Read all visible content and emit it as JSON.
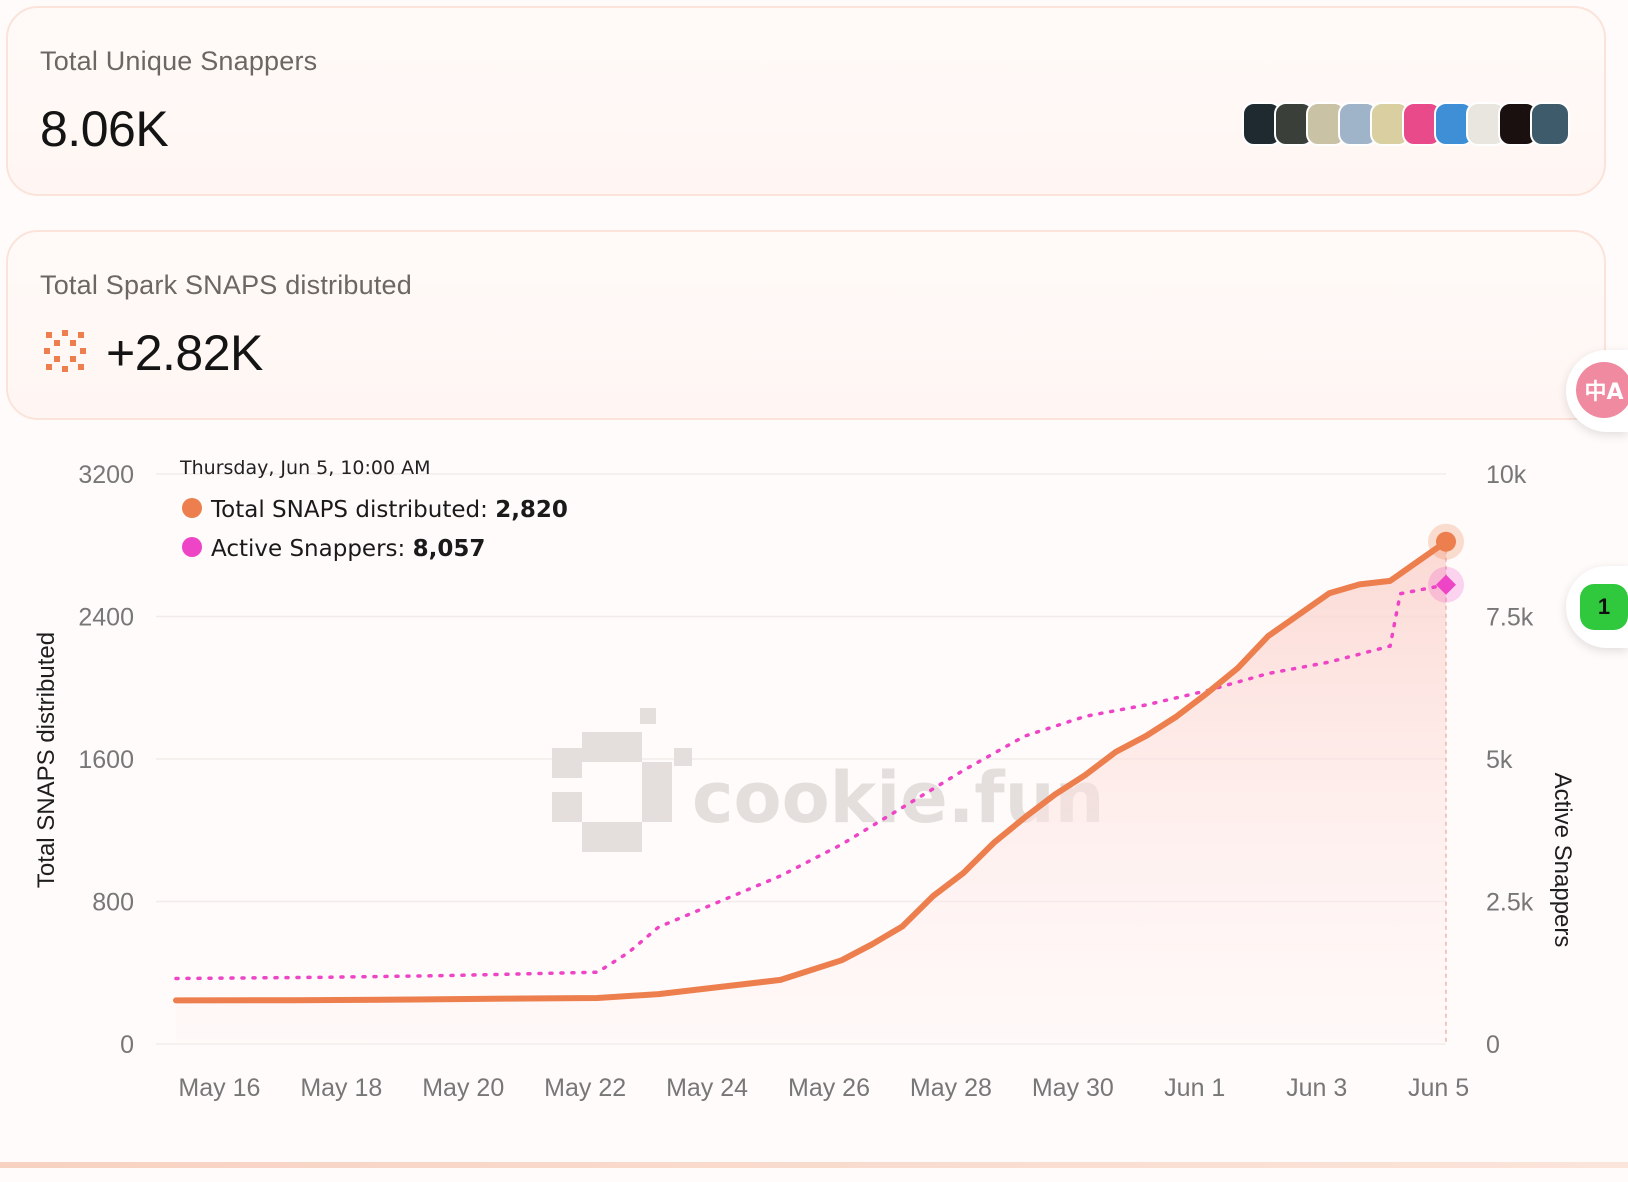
{
  "cards": {
    "snappers": {
      "label": "Total Unique Snappers",
      "value": "8.06K"
    },
    "snaps": {
      "label": "Total Spark SNAPS distributed",
      "value": "+2.82K"
    }
  },
  "avatar_colors": [
    "#1f2a30",
    "#3a3f3a",
    "#c9c2a4",
    "#9fb4c9",
    "#d9cfa0",
    "#e84a8a",
    "#3f8fd6",
    "#e9e6e0",
    "#1a1010",
    "#3e5b6b"
  ],
  "icons": {
    "spark": "spark-icon",
    "translate": "translate-icon",
    "counter": "counter-badge-icon"
  },
  "translate_label": "中A",
  "counter_label": "1",
  "watermark": "cookie.fun",
  "tooltip": {
    "time": "Thursday, Jun 5, 10:00 AM",
    "snaps_label": "Total SNAPS distributed: ",
    "snaps_value": "2,820",
    "snappers_label": "Active Snappers: ",
    "snappers_value": "8,057"
  },
  "chart_data": {
    "type": "line",
    "x_labels": [
      "May 16",
      "May 18",
      "May 20",
      "May 22",
      "May 24",
      "May 26",
      "May 28",
      "May 30",
      "Jun 1",
      "Jun 3",
      "Jun 5"
    ],
    "x_range": [
      "2025-05-15T14:00",
      "2025-06-05T10:00"
    ],
    "y_left": {
      "label": "Total SNAPS distributed",
      "ticks": [
        "3200",
        "2400",
        "1600",
        "800",
        "0"
      ],
      "range": [
        0,
        3200
      ]
    },
    "y_right": {
      "label": "Active Snappers",
      "ticks": [
        "10k",
        "7.5k",
        "5k",
        "2.5k",
        "0"
      ],
      "range": [
        0,
        10000
      ]
    },
    "series": [
      {
        "name": "Total SNAPS distributed",
        "axis": "left",
        "color": "#ec7f4d",
        "style": "solid-area",
        "points": [
          [
            "2025-05-15T14:00",
            245
          ],
          [
            "2025-05-17T12:00",
            246
          ],
          [
            "2025-05-19T12:00",
            250
          ],
          [
            "2025-05-21T00:00",
            255
          ],
          [
            "2025-05-22T12:00",
            258
          ],
          [
            "2025-05-23T12:00",
            280
          ],
          [
            "2025-05-24T12:00",
            320
          ],
          [
            "2025-05-25T12:00",
            360
          ],
          [
            "2025-05-26T12:00",
            470
          ],
          [
            "2025-05-27T00:00",
            560
          ],
          [
            "2025-05-27T12:00",
            660
          ],
          [
            "2025-05-28T00:00",
            830
          ],
          [
            "2025-05-28T12:00",
            960
          ],
          [
            "2025-05-29T00:00",
            1130
          ],
          [
            "2025-05-29T12:00",
            1270
          ],
          [
            "2025-05-30T00:00",
            1400
          ],
          [
            "2025-05-30T12:00",
            1510
          ],
          [
            "2025-05-31T00:00",
            1640
          ],
          [
            "2025-05-31T12:00",
            1730
          ],
          [
            "2025-06-01T00:00",
            1840
          ],
          [
            "2025-06-01T12:00",
            1970
          ],
          [
            "2025-06-02T00:00",
            2110
          ],
          [
            "2025-06-02T12:00",
            2290
          ],
          [
            "2025-06-03T00:00",
            2410
          ],
          [
            "2025-06-03T12:00",
            2530
          ],
          [
            "2025-06-04T00:00",
            2580
          ],
          [
            "2025-06-04T12:00",
            2600
          ],
          [
            "2025-06-05T00:00",
            2720
          ],
          [
            "2025-06-05T10:00",
            2820
          ]
        ]
      },
      {
        "name": "Active Snappers",
        "axis": "right",
        "color": "#ee44c6",
        "style": "dotted",
        "points": [
          [
            "2025-05-15T14:00",
            1150
          ],
          [
            "2025-05-18T00:00",
            1170
          ],
          [
            "2025-05-20T00:00",
            1200
          ],
          [
            "2025-05-22T12:00",
            1260
          ],
          [
            "2025-05-23T00:00",
            1600
          ],
          [
            "2025-05-23T12:00",
            2050
          ],
          [
            "2025-05-24T12:00",
            2500
          ],
          [
            "2025-05-25T12:00",
            2950
          ],
          [
            "2025-05-26T12:00",
            3500
          ],
          [
            "2025-05-27T12:00",
            4150
          ],
          [
            "2025-05-28T12:00",
            4800
          ],
          [
            "2025-05-29T12:00",
            5400
          ],
          [
            "2025-05-30T12:00",
            5750
          ],
          [
            "2025-05-31T12:00",
            5950
          ],
          [
            "2025-06-01T12:00",
            6200
          ],
          [
            "2025-06-02T12:00",
            6500
          ],
          [
            "2025-06-03T12:00",
            6700
          ],
          [
            "2025-06-04T12:00",
            6980
          ],
          [
            "2025-06-04T16:00",
            7900
          ],
          [
            "2025-06-05T10:00",
            8057
          ]
        ]
      }
    ],
    "grid": true,
    "tooltip_at": "2025-06-05T10:00"
  }
}
